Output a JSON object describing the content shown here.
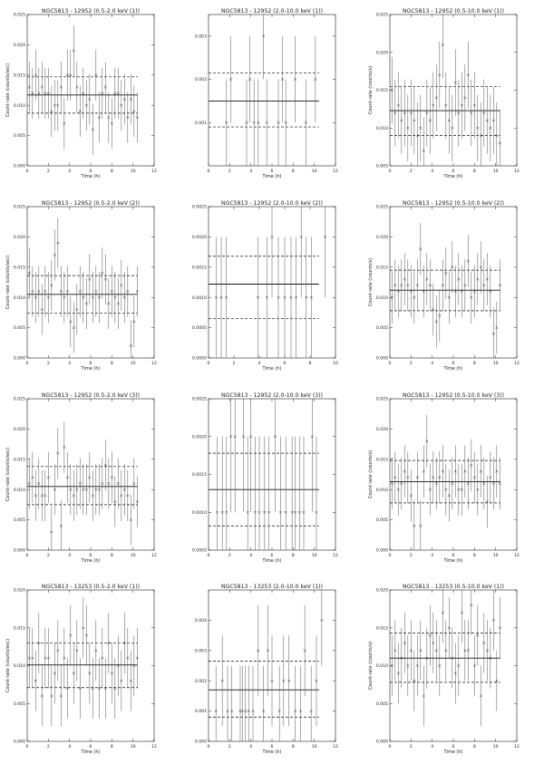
{
  "chart_data": [
    {
      "type": "scatter",
      "title": "NGC5813 - 12952 (0.5-2.0 keV (1))",
      "xlabel": "Time (h)",
      "ylabel": "Count-rate (counts/sec)",
      "xlim": [
        0,
        12
      ],
      "ylim": [
        0,
        0.025
      ],
      "xticks": [
        0,
        2,
        4,
        6,
        8,
        10,
        12
      ],
      "yticks": [
        "0.000",
        "0.005",
        "0.010",
        "0.015",
        "0.020",
        "0.025"
      ],
      "mean": 0.0117,
      "bounds": [
        0.0087,
        0.0147
      ],
      "err": 0.0042,
      "x": [
        0.2,
        0.5,
        0.8,
        1.1,
        1.4,
        1.7,
        2.0,
        2.3,
        2.6,
        2.9,
        3.2,
        3.5,
        3.8,
        4.1,
        4.4,
        4.7,
        5.0,
        5.3,
        5.6,
        5.9,
        6.2,
        6.5,
        6.8,
        7.1,
        7.4,
        7.7,
        8.0,
        8.3,
        8.6,
        8.9,
        9.2,
        9.5,
        9.8,
        10.1,
        10.4
      ],
      "y": [
        0.013,
        0.012,
        0.015,
        0.012,
        0.013,
        0.012,
        0.012,
        0.009,
        0.01,
        0.01,
        0.013,
        0.007,
        0.015,
        0.015,
        0.019,
        0.013,
        0.009,
        0.012,
        0.01,
        0.011,
        0.006,
        0.015,
        0.008,
        0.012,
        0.013,
        0.008,
        0.007,
        0.012,
        0.012,
        0.01,
        0.011,
        0.008,
        0.011,
        0.009,
        0.008
      ]
    },
    {
      "type": "scatter",
      "title": "NGC5813 - 12952 (2.0-10.0 keV (1))",
      "xlabel": "Time (h)",
      "ylabel": "",
      "xlim": [
        0,
        12
      ],
      "ylim": [
        0,
        0.0035
      ],
      "xticks": [
        0,
        2,
        4,
        6,
        8,
        10,
        12
      ],
      "yticks": [
        "0.001",
        "0.002",
        "0.003"
      ],
      "mean": 0.0015,
      "bounds": [
        0.0009,
        0.00215
      ],
      "err": 0.001,
      "x": [
        1.7,
        2.1,
        3.6,
        3.9,
        4.3,
        4.7,
        5.2,
        5.5,
        6.6,
        7.0,
        7.3,
        8.2,
        9.2,
        10.1
      ],
      "y": [
        0.001,
        0.002,
        0.001,
        0.002,
        0.001,
        0.001,
        0.003,
        0.001,
        0.001,
        0.002,
        0.001,
        0.002,
        0.001,
        0.002
      ]
    },
    {
      "type": "scatter",
      "title": "NGC5813 - 12952 (0.5-10.0 keV (1))",
      "xlabel": "Time (h)",
      "ylabel": "Count-rate (counts/s)",
      "xlim": [
        0,
        12
      ],
      "ylim": [
        0.005,
        0.025
      ],
      "xticks": [
        0,
        2,
        4,
        6,
        8,
        10,
        12
      ],
      "yticks": [
        "0.005",
        "0.010",
        "0.015",
        "0.020",
        "0.025"
      ],
      "mean": 0.0123,
      "bounds": [
        0.009,
        0.0155
      ],
      "err": 0.0044,
      "x": [
        0.2,
        0.5,
        0.8,
        1.1,
        1.4,
        1.7,
        2.0,
        2.3,
        2.6,
        2.9,
        3.2,
        3.5,
        3.8,
        4.1,
        4.4,
        4.7,
        5.0,
        5.3,
        5.6,
        5.9,
        6.2,
        6.5,
        6.8,
        7.1,
        7.4,
        7.7,
        8.0,
        8.3,
        8.6,
        8.9,
        9.2,
        9.5,
        9.8,
        10.1,
        10.4
      ],
      "y": [
        0.015,
        0.012,
        0.013,
        0.011,
        0.012,
        0.01,
        0.012,
        0.011,
        0.009,
        0.01,
        0.007,
        0.012,
        0.011,
        0.013,
        0.014,
        0.017,
        0.021,
        0.013,
        0.011,
        0.01,
        0.016,
        0.012,
        0.013,
        0.014,
        0.017,
        0.012,
        0.013,
        0.01,
        0.009,
        0.012,
        0.011,
        0.01,
        0.011,
        0.009,
        0.008
      ]
    },
    {
      "type": "scatter",
      "title": "NGC5813 - 12952 (0.5-2.0 keV (2))",
      "xlabel": "Time (h)",
      "ylabel": "Count-rate (counts/sec)",
      "xlim": [
        0,
        12
      ],
      "ylim": [
        0,
        0.025
      ],
      "xticks": [
        0,
        2,
        4,
        6,
        8,
        10,
        12
      ],
      "yticks": [
        "0.000",
        "0.005",
        "0.010",
        "0.015",
        "0.020",
        "0.025"
      ],
      "mean": 0.0105,
      "bounds": [
        0.0074,
        0.0136
      ],
      "err": 0.0042,
      "x": [
        0.2,
        0.5,
        0.8,
        1.1,
        1.4,
        1.7,
        2.0,
        2.3,
        2.6,
        2.9,
        3.2,
        3.5,
        3.8,
        4.1,
        4.4,
        4.7,
        5.0,
        5.3,
        5.6,
        5.9,
        6.2,
        6.5,
        6.8,
        7.1,
        7.4,
        7.7,
        8.0,
        8.3,
        8.6,
        8.9,
        9.2,
        9.5,
        9.8,
        10.1,
        10.4
      ],
      "y": [
        0.014,
        0.011,
        0.01,
        0.011,
        0.008,
        0.011,
        0.01,
        0.012,
        0.017,
        0.019,
        0.011,
        0.01,
        0.011,
        0.006,
        0.005,
        0.008,
        0.011,
        0.01,
        0.009,
        0.013,
        0.01,
        0.011,
        0.01,
        0.014,
        0.013,
        0.009,
        0.011,
        0.01,
        0.009,
        0.012,
        0.01,
        0.011,
        0.002,
        0.006,
        0.011
      ]
    },
    {
      "type": "scatter",
      "title": "NGC5813 - 12952 (2.0-10.0 keV (2))",
      "xlabel": "Time (h)",
      "ylabel": "",
      "xlim": [
        0,
        10
      ],
      "ylim": [
        0,
        0.0025
      ],
      "xticks": [
        0,
        2,
        4,
        6,
        8,
        10
      ],
      "yticks": [
        "0.0000",
        "0.0005",
        "0.0010",
        "0.0015",
        "0.0020",
        "0.0025"
      ],
      "mean": 0.00122,
      "bounds": [
        0.00065,
        0.00168
      ],
      "err": 0.001,
      "x": [
        0.6,
        1.0,
        1.4,
        3.9,
        4.6,
        5.0,
        5.5,
        6.0,
        6.5,
        6.9,
        7.3,
        7.7,
        8.1,
        9.2
      ],
      "y": [
        0.001,
        0.001,
        0.001,
        0.001,
        0.001,
        0.002,
        0.001,
        0.001,
        0.001,
        0.001,
        0.002,
        0.001,
        0.001,
        0.002
      ]
    },
    {
      "type": "scatter",
      "title": "NGC5813 - 12952 (0.5-10.0 keV (2))",
      "xlabel": "Time (h)",
      "ylabel": "Count-rate (counts/s)",
      "xlim": [
        0,
        12
      ],
      "ylim": [
        0,
        0.025
      ],
      "xticks": [
        0,
        2,
        4,
        6,
        8,
        10,
        12
      ],
      "yticks": [
        "0.000",
        "0.005",
        "0.010",
        "0.015",
        "0.020",
        "0.025"
      ],
      "mean": 0.0112,
      "bounds": [
        0.0078,
        0.0145
      ],
      "err": 0.0043,
      "x": [
        0.2,
        0.5,
        0.8,
        1.1,
        1.4,
        1.7,
        2.0,
        2.3,
        2.6,
        2.9,
        3.2,
        3.5,
        3.8,
        4.1,
        4.4,
        4.7,
        5.0,
        5.3,
        5.6,
        5.9,
        6.2,
        6.5,
        6.8,
        7.1,
        7.4,
        7.7,
        8.0,
        8.3,
        8.6,
        8.9,
        9.2,
        9.5,
        9.8,
        10.1,
        10.4
      ],
      "y": [
        0.01,
        0.012,
        0.011,
        0.012,
        0.013,
        0.012,
        0.011,
        0.01,
        0.012,
        0.018,
        0.011,
        0.013,
        0.012,
        0.008,
        0.006,
        0.007,
        0.012,
        0.014,
        0.01,
        0.015,
        0.011,
        0.013,
        0.011,
        0.012,
        0.016,
        0.01,
        0.011,
        0.013,
        0.015,
        0.012,
        0.013,
        0.011,
        0.004,
        0.005,
        0.012
      ]
    },
    {
      "type": "scatter",
      "title": "NGC5813 - 12952 (0.5-2.0 keV (3))",
      "xlabel": "Time (h)",
      "ylabel": "Count-rate (counts/sec)",
      "xlim": [
        0,
        12
      ],
      "ylim": [
        0,
        0.025
      ],
      "xticks": [
        0,
        2,
        4,
        6,
        8,
        10,
        12
      ],
      "yticks": [
        "0.000",
        "0.005",
        "0.010",
        "0.015",
        "0.020",
        "0.025"
      ],
      "mean": 0.0105,
      "bounds": [
        0.0075,
        0.0138
      ],
      "err": 0.0042,
      "x": [
        0.2,
        0.5,
        0.8,
        1.1,
        1.4,
        1.7,
        2.0,
        2.3,
        2.6,
        2.9,
        3.2,
        3.5,
        3.8,
        4.1,
        4.4,
        4.7,
        5.0,
        5.3,
        5.6,
        5.9,
        6.2,
        6.5,
        6.8,
        7.1,
        7.4,
        7.7,
        8.0,
        8.3,
        8.6,
        8.9,
        9.2,
        9.5,
        9.8,
        10.1,
        10.4
      ],
      "y": [
        0.011,
        0.012,
        0.009,
        0.011,
        0.009,
        0.009,
        0.012,
        0.003,
        0.01,
        0.016,
        0.004,
        0.017,
        0.012,
        0.01,
        0.009,
        0.01,
        0.011,
        0.01,
        0.01,
        0.012,
        0.009,
        0.01,
        0.01,
        0.011,
        0.014,
        0.011,
        0.012,
        0.008,
        0.011,
        0.009,
        0.01,
        0.009,
        0.005,
        0.011,
        0.008
      ]
    },
    {
      "type": "scatter",
      "title": "NGC5813 - 12952 (2.0-10.0 keV (3))",
      "xlabel": "Time (h)",
      "ylabel": "",
      "xlim": [
        0,
        12
      ],
      "ylim": [
        0.0005,
        0.0025
      ],
      "xticks": [
        0,
        2,
        4,
        6,
        8,
        10,
        12
      ],
      "yticks": [
        "0.0005",
        "0.0010",
        "0.0015",
        "0.0020",
        "0.0025"
      ],
      "mean": 0.0013,
      "bounds": [
        0.00082,
        0.00178
      ],
      "err": 0.001,
      "x": [
        0.8,
        1.3,
        1.7,
        2.1,
        2.5,
        3.3,
        3.7,
        4.0,
        4.4,
        4.8,
        5.3,
        5.7,
        6.3,
        6.8,
        7.3,
        7.9,
        8.2,
        8.6,
        9.0,
        9.8,
        10.2
      ],
      "y": [
        0.001,
        0.001,
        0.001,
        0.002,
        0.002,
        0.002,
        0.001,
        0.002,
        0.001,
        0.001,
        0.001,
        0.001,
        0.002,
        0.001,
        0.001,
        0.001,
        0.001,
        0.001,
        0.001,
        0.002,
        0.001
      ]
    },
    {
      "type": "scatter",
      "title": "NGC5813 - 12952 (0.5-10.0 keV (3))",
      "xlabel": "Time (h)",
      "ylabel": "Count-rate (counts/s)",
      "xlim": [
        0,
        12
      ],
      "ylim": [
        0,
        0.025
      ],
      "xticks": [
        0,
        2,
        4,
        6,
        8,
        10,
        12
      ],
      "yticks": [
        "0.000",
        "0.005",
        "0.010",
        "0.015",
        "0.020",
        "0.025"
      ],
      "mean": 0.0113,
      "bounds": [
        0.0078,
        0.0148
      ],
      "err": 0.0043,
      "x": [
        0.2,
        0.5,
        0.8,
        1.1,
        1.4,
        1.7,
        2.0,
        2.3,
        2.6,
        2.9,
        3.2,
        3.5,
        3.8,
        4.1,
        4.4,
        4.7,
        5.0,
        5.3,
        5.6,
        5.9,
        6.2,
        6.5,
        6.8,
        7.1,
        7.4,
        7.7,
        8.0,
        8.3,
        8.6,
        8.9,
        9.2,
        9.5,
        9.8,
        10.1,
        10.4
      ],
      "y": [
        0.011,
        0.012,
        0.01,
        0.011,
        0.013,
        0.012,
        0.009,
        0.004,
        0.012,
        0.004,
        0.013,
        0.018,
        0.01,
        0.012,
        0.011,
        0.012,
        0.013,
        0.01,
        0.009,
        0.011,
        0.013,
        0.01,
        0.01,
        0.013,
        0.011,
        0.014,
        0.012,
        0.01,
        0.013,
        0.011,
        0.008,
        0.012,
        0.011,
        0.013,
        0.011
      ]
    },
    {
      "type": "scatter",
      "title": "NGC5813 - 13253 (0.5-2.0 keV (1))",
      "xlabel": "Time (h)",
      "ylabel": "Count-rate (counts/sec)",
      "xlim": [
        0,
        12
      ],
      "ylim": [
        0,
        0.02
      ],
      "xticks": [
        0,
        2,
        4,
        6,
        8,
        10,
        12
      ],
      "yticks": [
        "0.000",
        "0.005",
        "0.010",
        "0.015",
        "0.020"
      ],
      "mean": 0.0101,
      "bounds": [
        0.0071,
        0.013
      ],
      "err": 0.004,
      "x": [
        0.2,
        0.5,
        0.8,
        1.1,
        1.4,
        1.7,
        2.0,
        2.3,
        2.6,
        2.9,
        3.2,
        3.5,
        3.8,
        4.1,
        4.4,
        4.7,
        5.0,
        5.3,
        5.6,
        5.9,
        6.2,
        6.5,
        6.8,
        7.1,
        7.4,
        7.7,
        8.0,
        8.3,
        8.6,
        8.9,
        9.2,
        9.5,
        9.8,
        10.1,
        10.4
      ],
      "y": [
        0.011,
        0.011,
        0.008,
        0.013,
        0.006,
        0.011,
        0.011,
        0.006,
        0.009,
        0.012,
        0.006,
        0.011,
        0.007,
        0.014,
        0.009,
        0.012,
        0.007,
        0.015,
        0.014,
        0.009,
        0.007,
        0.012,
        0.007,
        0.011,
        0.007,
        0.013,
        0.009,
        0.007,
        0.01,
        0.008,
        0.013,
        0.011,
        0.008,
        0.01,
        0.011
      ]
    },
    {
      "type": "scatter",
      "title": "NGC5813 - 13253 (2.0-10.0 keV (1))",
      "xlabel": "Time (h)",
      "ylabel": "",
      "xlim": [
        0,
        12
      ],
      "ylim": [
        0,
        0.005
      ],
      "xticks": [
        0,
        2,
        4,
        6,
        8,
        10,
        12
      ],
      "yticks": [
        "0.000",
        "0.001",
        "0.002",
        "0.003",
        "0.004"
      ],
      "mean": 0.0017,
      "bounds": [
        0.0008,
        0.00265
      ],
      "err": 0.0015,
      "x": [
        0.7,
        1.3,
        1.8,
        2.2,
        3.0,
        3.2,
        3.5,
        3.8,
        4.2,
        4.7,
        5.2,
        5.6,
        6.0,
        6.7,
        7.1,
        7.6,
        8.2,
        8.7,
        9.1,
        9.7,
        10.2,
        10.7
      ],
      "y": [
        0.001,
        0.002,
        0.001,
        0.001,
        0.001,
        0.001,
        0.001,
        0.001,
        0.001,
        0.003,
        0.001,
        0.003,
        0.002,
        0.001,
        0.002,
        0.002,
        0.001,
        0.001,
        0.003,
        0.001,
        0.002,
        0.004
      ]
    },
    {
      "type": "scatter",
      "title": "NGC5813 - 13253 (0.5-10.0 keV (1))",
      "xlabel": "Time (h)",
      "ylabel": "Count-rate (counts/s)",
      "xlim": [
        0,
        12
      ],
      "ylim": [
        0,
        0.02
      ],
      "xticks": [
        0,
        2,
        4,
        6,
        8,
        10,
        12
      ],
      "yticks": [
        "0.000",
        "0.005",
        "0.010",
        "0.015",
        "0.020"
      ],
      "mean": 0.011,
      "bounds": [
        0.0078,
        0.0143
      ],
      "err": 0.004,
      "x": [
        0.2,
        0.5,
        0.8,
        1.1,
        1.4,
        1.7,
        2.0,
        2.3,
        2.6,
        2.9,
        3.2,
        3.5,
        3.8,
        4.1,
        4.4,
        4.7,
        5.0,
        5.3,
        5.6,
        5.9,
        6.2,
        6.5,
        6.8,
        7.1,
        7.4,
        7.7,
        8.0,
        8.3,
        8.6,
        8.9,
        9.2,
        9.5,
        9.8,
        10.1,
        10.4
      ],
      "y": [
        0.01,
        0.012,
        0.009,
        0.011,
        0.013,
        0.01,
        0.012,
        0.008,
        0.01,
        0.012,
        0.006,
        0.011,
        0.014,
        0.013,
        0.012,
        0.01,
        0.017,
        0.012,
        0.015,
        0.011,
        0.009,
        0.01,
        0.017,
        0.012,
        0.012,
        0.018,
        0.01,
        0.014,
        0.006,
        0.013,
        0.012,
        0.011,
        0.016,
        0.008,
        0.015
      ]
    }
  ]
}
